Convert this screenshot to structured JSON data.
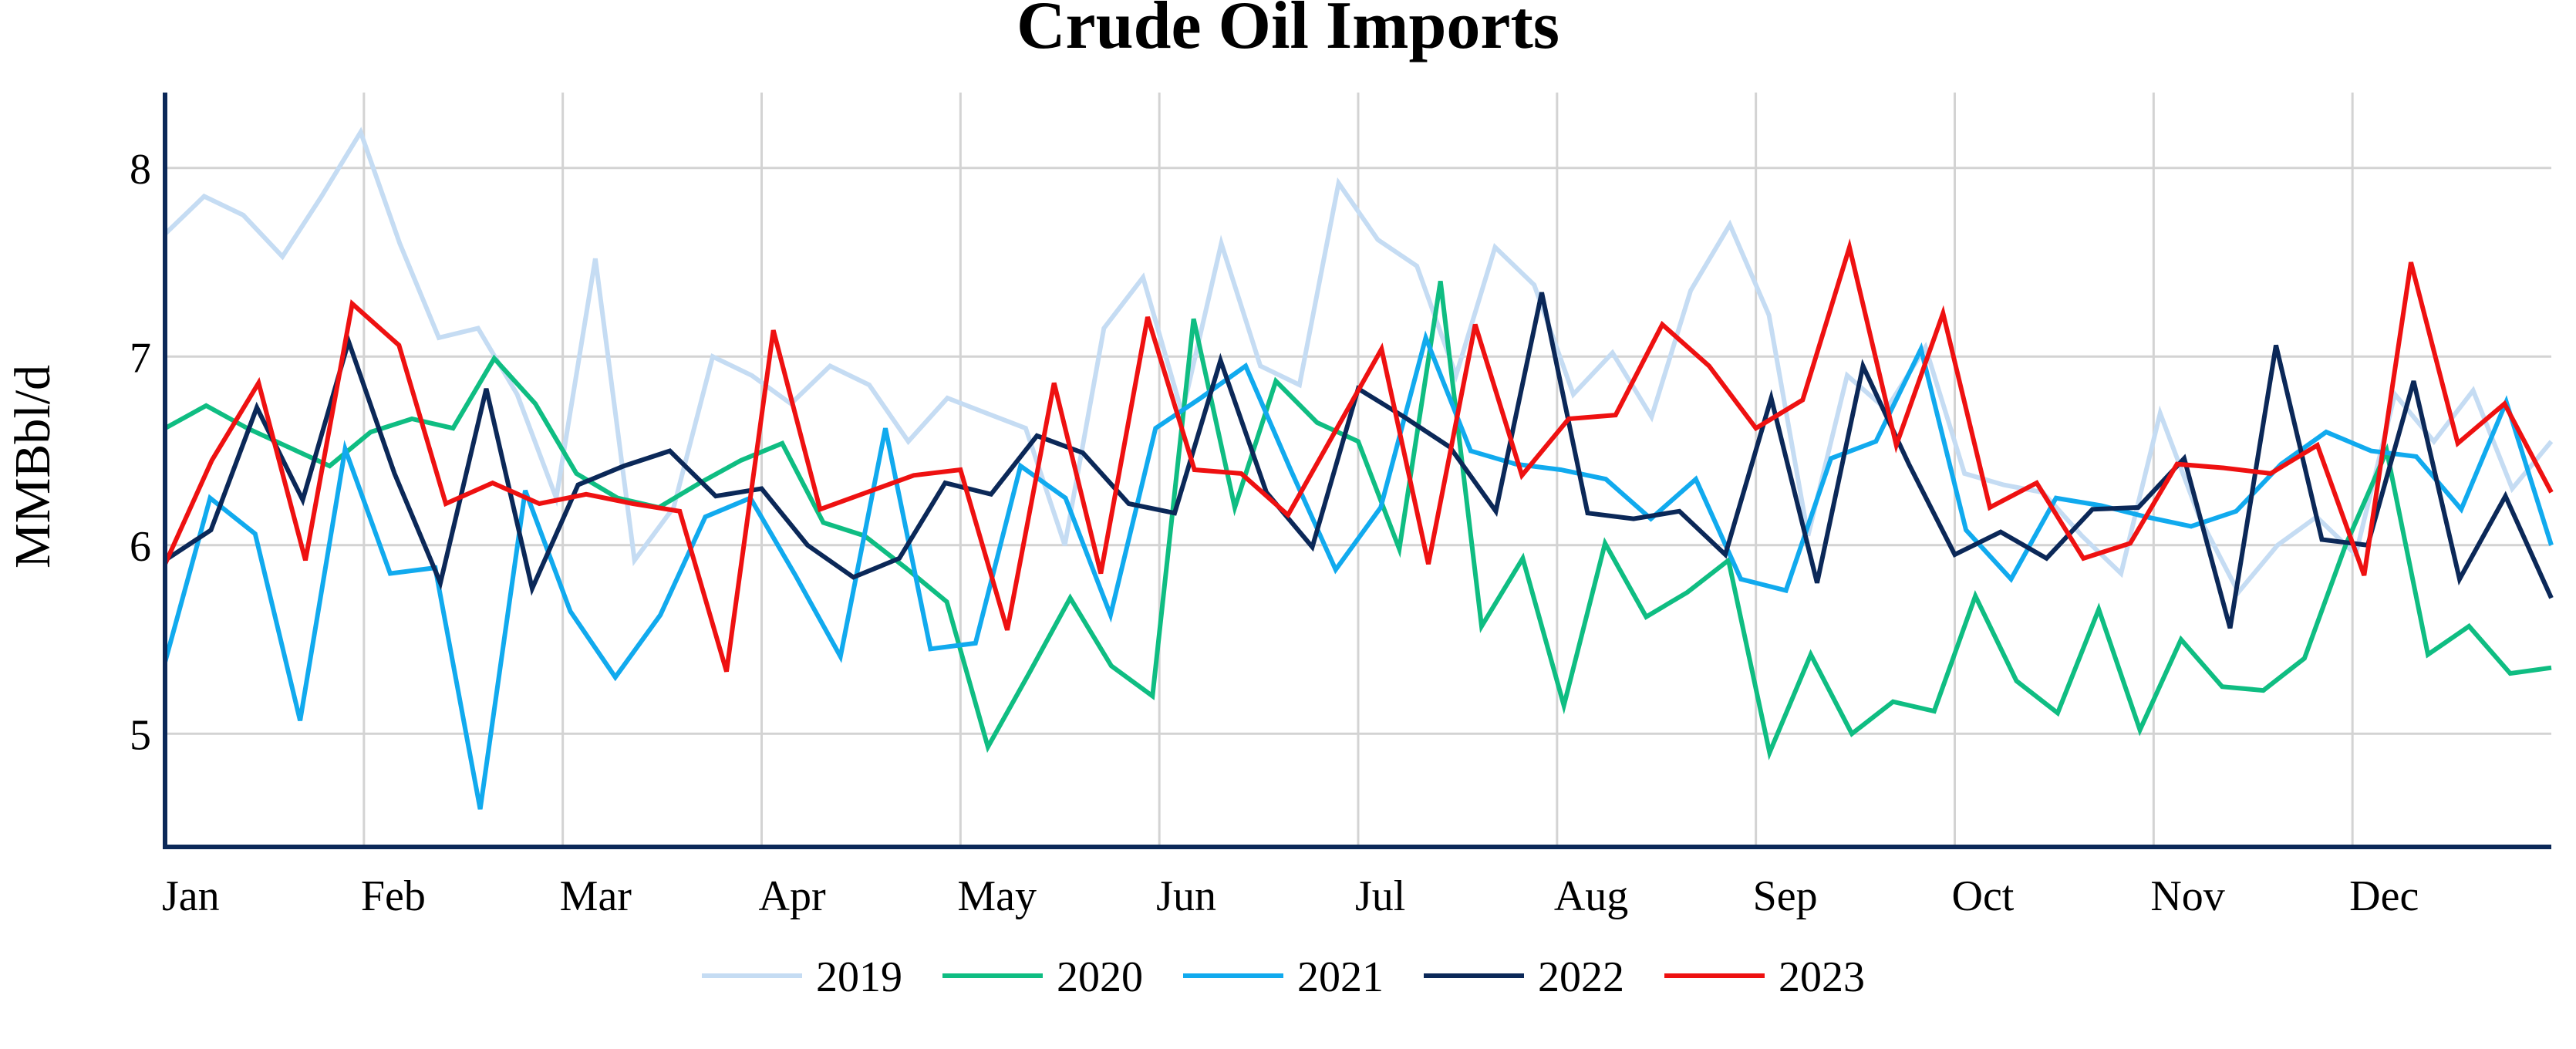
{
  "chart_data": {
    "type": "line",
    "title": "Crude Oil Imports",
    "ylabel": "MMBbl/d",
    "xlabel": "",
    "months": [
      "Jan",
      "Feb",
      "Mar",
      "Apr",
      "May",
      "Jun",
      "Jul",
      "Aug",
      "Sep",
      "Oct",
      "Nov",
      "Dec"
    ],
    "yticks": [
      "5",
      "6",
      "7",
      "8"
    ],
    "ylim": [
      4.4,
      8.4
    ],
    "xlim": [
      0,
      52
    ],
    "grid": true,
    "legend_position": "bottom",
    "series": [
      {
        "name": "2019",
        "color": "#c5dcf3",
        "values": [
          7.65,
          7.85,
          7.75,
          7.53,
          7.85,
          8.19,
          7.6,
          7.1,
          7.15,
          6.8,
          6.25,
          7.52,
          5.92,
          6.2,
          7.0,
          6.9,
          6.75,
          6.95,
          6.85,
          6.55,
          6.78,
          6.7,
          6.62,
          6.0,
          7.15,
          7.42,
          6.7,
          7.6,
          6.95,
          6.85,
          7.92,
          7.62,
          7.48,
          6.9,
          7.58,
          7.38,
          6.8,
          7.02,
          6.68,
          7.35,
          7.7,
          7.22,
          6.05,
          6.9,
          6.72,
          7.05,
          6.38,
          6.32,
          6.28,
          6.05,
          5.85,
          6.7,
          6.15,
          5.75,
          6.0,
          6.15,
          5.95,
          6.8,
          6.55,
          6.82,
          6.3,
          6.55
        ]
      },
      {
        "name": "2020",
        "color": "#0fbd82",
        "values": [
          6.62,
          6.74,
          6.62,
          6.52,
          6.42,
          6.6,
          6.67,
          6.62,
          6.99,
          6.75,
          6.38,
          6.25,
          6.2,
          6.33,
          6.45,
          6.54,
          6.12,
          6.05,
          5.88,
          5.7,
          4.93,
          5.32,
          5.72,
          5.36,
          5.2,
          7.2,
          6.2,
          6.87,
          6.65,
          6.55,
          5.98,
          7.4,
          5.57,
          5.93,
          5.15,
          6.01,
          5.62,
          5.75,
          5.92,
          4.9,
          5.42,
          5.0,
          5.17,
          5.12,
          5.73,
          5.28,
          5.11,
          5.66,
          5.02,
          5.5,
          5.25,
          5.23,
          5.4,
          6.0,
          6.5,
          5.42,
          5.57,
          5.32,
          5.35
        ]
      },
      {
        "name": "2021",
        "color": "#11aaee",
        "values": [
          5.38,
          6.25,
          6.06,
          5.07,
          6.51,
          5.85,
          5.88,
          4.6,
          6.29,
          5.65,
          5.3,
          5.63,
          6.15,
          6.25,
          5.84,
          5.41,
          6.62,
          5.45,
          5.48,
          6.42,
          6.25,
          5.63,
          6.62,
          6.78,
          6.95,
          6.4,
          5.87,
          6.2,
          7.1,
          6.5,
          6.43,
          6.4,
          6.35,
          6.14,
          6.35,
          5.82,
          5.76,
          6.46,
          6.55,
          7.04,
          6.08,
          5.82,
          6.25,
          6.21,
          6.15,
          6.1,
          6.18,
          6.43,
          6.6,
          6.5,
          6.47,
          6.19,
          6.76,
          6.0
        ]
      },
      {
        "name": "2022",
        "color": "#0b2858",
        "values": [
          5.92,
          6.08,
          6.73,
          6.24,
          7.08,
          6.38,
          5.8,
          6.83,
          5.77,
          6.32,
          6.42,
          6.5,
          6.26,
          6.3,
          6.0,
          5.83,
          5.93,
          6.33,
          6.27,
          6.58,
          6.49,
          6.22,
          6.17,
          6.98,
          6.28,
          5.99,
          6.83,
          6.68,
          6.52,
          6.18,
          7.34,
          6.17,
          6.14,
          6.18,
          5.95,
          6.78,
          5.8,
          6.95,
          6.43,
          5.95,
          6.07,
          5.93,
          6.19,
          6.2,
          6.46,
          5.56,
          7.06,
          6.03,
          6.0,
          6.87,
          5.82,
          6.26,
          5.72
        ]
      },
      {
        "name": "2023",
        "color": "#ee1111",
        "values": [
          5.9,
          6.45,
          6.86,
          5.92,
          7.28,
          7.06,
          6.22,
          6.33,
          6.22,
          6.27,
          6.22,
          6.18,
          5.33,
          7.14,
          6.19,
          6.28,
          6.37,
          6.4,
          5.55,
          6.86,
          5.85,
          7.21,
          6.4,
          6.38,
          6.16,
          6.6,
          7.04,
          5.9,
          7.17,
          6.37,
          6.67,
          6.69,
          7.17,
          6.95,
          6.62,
          6.77,
          7.58,
          6.53,
          7.23,
          6.2,
          6.33,
          5.93,
          6.01,
          6.43,
          6.41,
          6.38,
          6.53,
          5.84,
          7.5,
          6.54,
          6.75,
          6.28
        ]
      }
    ]
  }
}
